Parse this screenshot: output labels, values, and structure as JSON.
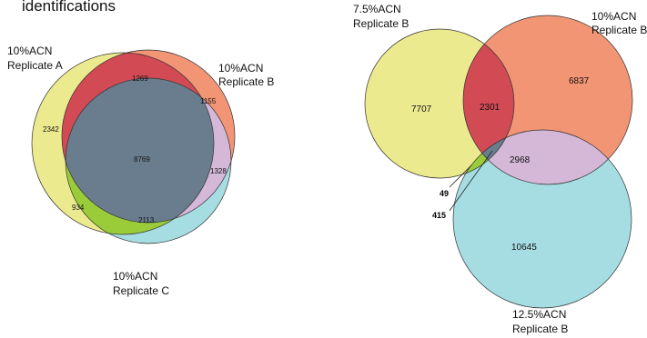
{
  "heading": {
    "text": "identifications"
  },
  "diagram_left": {
    "sets": [
      {
        "label_line1": "10%ACN",
        "label_line2": "Replicate A",
        "color": "#ecea8f"
      },
      {
        "label_line1": "10%ACN",
        "label_line2": "Replicate B",
        "color": "#f29574"
      },
      {
        "label_line1": "10%ACN",
        "label_line2": "Replicate C",
        "color": "#a6dde3"
      }
    ],
    "regions": {
      "a_only": "2342",
      "a_b": "1269",
      "b_only": "1155",
      "b_c": "1328",
      "abc": "8769",
      "a_c": "934",
      "c_only": "2113"
    },
    "colors": {
      "a_b": "#d24a54",
      "b_c": "#d5b8d8",
      "a_c": "#9acc3a",
      "abc": "#6a7d8e"
    }
  },
  "diagram_right": {
    "sets": [
      {
        "label_line1": "7.5%ACN",
        "label_line2": "Replicate B",
        "color": "#ecea8f"
      },
      {
        "label_line1": "10%ACN",
        "label_line2": "Replicate B",
        "color": "#f29574"
      },
      {
        "label_line1": "12.5%ACN",
        "label_line2": "Replicate B",
        "color": "#a6dde3"
      }
    ],
    "regions": {
      "a_only": "7707",
      "a_b": "2301",
      "b_only": "6837",
      "b_c": "2968",
      "c_only": "10645",
      "a_c": "49",
      "abc": "415"
    },
    "colors": {
      "a_b": "#d24a54",
      "b_c": "#d5b8d8",
      "a_c": "#9acc3a",
      "abc": "#6a7d8e"
    }
  }
}
